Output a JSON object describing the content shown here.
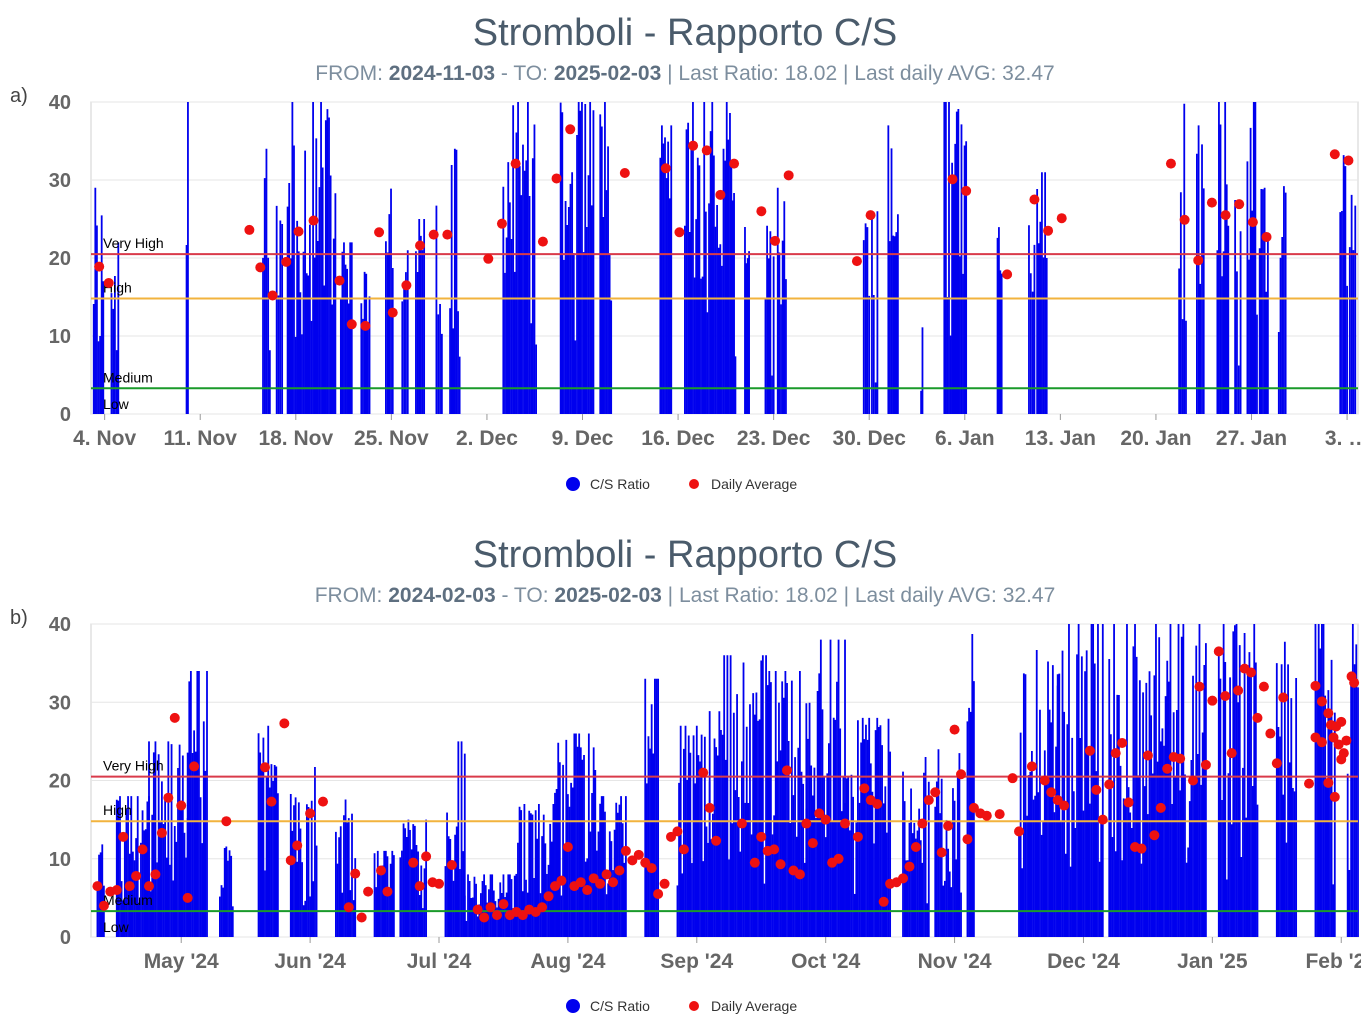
{
  "chart_data": [
    {
      "type": "bar",
      "panel_label": "a)",
      "title": "Stromboli - Rapporto C/S",
      "subtitle": {
        "from_label": "FROM:",
        "from": "2024-11-03",
        "to_label": "- TO:",
        "to": "2025-02-03",
        "last_ratio": "| Last Ratio: 18.02",
        "last_avg": "| Last daily AVG: 32.47"
      },
      "ylim": [
        0,
        40
      ],
      "xlim": [
        0,
        92.8
      ],
      "yticks": [
        "0",
        "10",
        "20",
        "30",
        "40"
      ],
      "xticks": [
        {
          "x": 1,
          "label": "4. Nov"
        },
        {
          "x": 8,
          "label": "11. Nov"
        },
        {
          "x": 15,
          "label": "18. Nov"
        },
        {
          "x": 22,
          "label": "25. Nov"
        },
        {
          "x": 29,
          "label": "2. Dec"
        },
        {
          "x": 36,
          "label": "9. Dec"
        },
        {
          "x": 43,
          "label": "16. Dec"
        },
        {
          "x": 50,
          "label": "23. Dec"
        },
        {
          "x": 57,
          "label": "30. Dec"
        },
        {
          "x": 64,
          "label": "6. Jan"
        },
        {
          "x": 71,
          "label": "13. Jan"
        },
        {
          "x": 78,
          "label": "20. Jan"
        },
        {
          "x": 85,
          "label": "27. Jan"
        },
        {
          "x": 92,
          "label": "3. …"
        }
      ],
      "thresholds": [
        {
          "name": "Very High",
          "value": 20.5,
          "color": "#d93a4a"
        },
        {
          "name": "High",
          "value": 14.8,
          "color": "#f2b33d"
        },
        {
          "name": "Medium",
          "value": 3.3,
          "color": "#1a9a2a"
        },
        {
          "name": "Low",
          "value": 0,
          "color": "#1a9a2a"
        }
      ],
      "legend": {
        "ratio_label": "C/S Ratio",
        "avg_label": "Daily Average",
        "placement": "bottom-center"
      },
      "ratio_color": "#0000ee",
      "avg_color": "#ee1111",
      "bar_clusters": [
        [
          0.2,
          0.9,
          29
        ],
        [
          1.5,
          2.0,
          22
        ],
        [
          7.0,
          7.1,
          40
        ],
        [
          12.6,
          13.1,
          34
        ],
        [
          13.6,
          14.0,
          29
        ],
        [
          14.4,
          17.9,
          40
        ],
        [
          18.3,
          19.1,
          22
        ],
        [
          19.8,
          20.4,
          19
        ],
        [
          21.6,
          22.1,
          37
        ],
        [
          22.8,
          23.2,
          21
        ],
        [
          23.8,
          24.4,
          25
        ],
        [
          25.3,
          25.7,
          27
        ],
        [
          26.3,
          27.0,
          34
        ],
        [
          30.2,
          32.6,
          40
        ],
        [
          34.4,
          36.8,
          40
        ],
        [
          37.3,
          38.1,
          40
        ],
        [
          41.7,
          42.5,
          37
        ],
        [
          43.5,
          46.8,
          40
        ],
        [
          46.9,
          47.2,
          33
        ],
        [
          47.9,
          48.2,
          27
        ],
        [
          49.4,
          50.0,
          27
        ],
        [
          50.3,
          50.9,
          29
        ],
        [
          56.6,
          57.0,
          25
        ],
        [
          57.2,
          57.6,
          26
        ],
        [
          58.4,
          59.1,
          37
        ],
        [
          60.8,
          60.9,
          15
        ],
        [
          62.5,
          64.1,
          40
        ],
        [
          66.4,
          66.7,
          28
        ],
        [
          68.7,
          69.1,
          29
        ],
        [
          69.3,
          70.0,
          31
        ],
        [
          79.7,
          80.2,
          40
        ],
        [
          81.0,
          81.5,
          37
        ],
        [
          82.5,
          83.3,
          40
        ],
        [
          83.8,
          84.2,
          29
        ],
        [
          84.7,
          85.4,
          40
        ],
        [
          85.6,
          86.2,
          29
        ],
        [
          87.0,
          87.5,
          30
        ],
        [
          91.5,
          92.0,
          36
        ],
        [
          92.2,
          92.6,
          40
        ]
      ],
      "daily_average": [
        [
          0.6,
          18.9
        ],
        [
          1.3,
          16.8
        ],
        [
          11.6,
          23.6
        ],
        [
          12.4,
          18.8
        ],
        [
          13.3,
          15.2
        ],
        [
          14.3,
          19.5
        ],
        [
          15.2,
          23.4
        ],
        [
          16.3,
          24.8
        ],
        [
          18.2,
          17.1
        ],
        [
          19.1,
          11.5
        ],
        [
          20.1,
          11.3
        ],
        [
          21.1,
          23.3
        ],
        [
          22.1,
          13.0
        ],
        [
          23.1,
          16.5
        ],
        [
          24.1,
          21.6
        ],
        [
          25.1,
          23.0
        ],
        [
          26.1,
          23.0
        ],
        [
          29.1,
          19.9
        ],
        [
          30.1,
          24.4
        ],
        [
          31.1,
          32.1
        ],
        [
          33.1,
          22.1
        ],
        [
          34.1,
          30.2
        ],
        [
          35.1,
          36.5
        ],
        [
          39.1,
          30.9
        ],
        [
          42.1,
          31.5
        ],
        [
          43.1,
          23.3
        ],
        [
          44.1,
          34.4
        ],
        [
          45.1,
          33.8
        ],
        [
          46.1,
          28.1
        ],
        [
          47.1,
          32.1
        ],
        [
          49.1,
          26.0
        ],
        [
          50.1,
          22.2
        ],
        [
          51.1,
          30.6
        ],
        [
          56.1,
          19.6
        ],
        [
          57.1,
          25.5
        ],
        [
          63.1,
          30.1
        ],
        [
          64.1,
          28.6
        ],
        [
          67.1,
          17.9
        ],
        [
          69.1,
          27.5
        ],
        [
          70.1,
          23.5
        ],
        [
          71.1,
          25.1
        ],
        [
          79.1,
          32.1
        ],
        [
          80.1,
          24.9
        ],
        [
          81.1,
          19.7
        ],
        [
          82.1,
          27.1
        ],
        [
          83.1,
          25.5
        ],
        [
          84.1,
          26.9
        ],
        [
          85.1,
          24.6
        ],
        [
          86.1,
          22.7
        ],
        [
          91.1,
          33.3
        ],
        [
          92.1,
          32.5
        ]
      ]
    },
    {
      "type": "bar",
      "panel_label": "b)",
      "title": "Stromboli - Rapporto C/S",
      "subtitle": {
        "from_label": "FROM:",
        "from": "2024-02-03",
        "to_label": "- TO:",
        "to": "2025-02-03",
        "last_ratio": "| Last Ratio: 18.02",
        "last_avg": "| Last daily AVG: 32.47"
      },
      "ylim": [
        0,
        40
      ],
      "xlim": [
        0,
        9.83
      ],
      "yticks": [
        "0",
        "10",
        "20",
        "30",
        "40"
      ],
      "xticks": [
        {
          "x": 0.7,
          "label": "May '24"
        },
        {
          "x": 1.7,
          "label": "Jun '24"
        },
        {
          "x": 2.7,
          "label": "Jul '24"
        },
        {
          "x": 3.7,
          "label": "Aug '24"
        },
        {
          "x": 4.7,
          "label": "Sep '24"
        },
        {
          "x": 5.7,
          "label": "Oct '24"
        },
        {
          "x": 6.7,
          "label": "Nov '24"
        },
        {
          "x": 7.7,
          "label": "Dec '24"
        },
        {
          "x": 8.7,
          "label": "Jan '25"
        },
        {
          "x": 9.7,
          "label": "Feb '25"
        }
      ],
      "thresholds": [
        {
          "name": "Very High",
          "value": 20.5,
          "color": "#d93a4a"
        },
        {
          "name": "High",
          "value": 14.8,
          "color": "#f2b33d"
        },
        {
          "name": "Medium",
          "value": 3.3,
          "color": "#1a9a2a"
        },
        {
          "name": "Low",
          "value": 0,
          "color": "#1a9a2a"
        }
      ],
      "legend": {
        "ratio_label": "C/S Ratio",
        "avg_label": "Daily Average",
        "placement": "bottom-center"
      },
      "ratio_color": "#0000ee",
      "avg_color": "#ee1111",
      "bar_clusters": [
        [
          0.05,
          0.1,
          13
        ],
        [
          0.2,
          0.45,
          18
        ],
        [
          0.45,
          0.75,
          25
        ],
        [
          0.75,
          0.9,
          34
        ],
        [
          1.0,
          1.1,
          12
        ],
        [
          1.3,
          1.45,
          27
        ],
        [
          1.55,
          1.75,
          22
        ],
        [
          1.9,
          2.05,
          18
        ],
        [
          2.2,
          2.35,
          11
        ],
        [
          2.4,
          2.6,
          15
        ],
        [
          2.75,
          2.9,
          25
        ],
        [
          2.9,
          3.3,
          8
        ],
        [
          3.3,
          3.6,
          17
        ],
        [
          3.6,
          3.95,
          26
        ],
        [
          3.95,
          4.15,
          18
        ],
        [
          4.3,
          4.4,
          33
        ],
        [
          4.55,
          4.8,
          27
        ],
        [
          4.8,
          5.25,
          36
        ],
        [
          5.25,
          5.55,
          34
        ],
        [
          5.55,
          5.85,
          38
        ],
        [
          5.85,
          6.2,
          28
        ],
        [
          6.3,
          6.5,
          23
        ],
        [
          6.55,
          6.75,
          24
        ],
        [
          6.8,
          6.85,
          40
        ],
        [
          7.2,
          7.5,
          38
        ],
        [
          7.5,
          7.85,
          40
        ],
        [
          7.9,
          8.3,
          40
        ],
        [
          8.3,
          8.65,
          40
        ],
        [
          8.75,
          9.05,
          40
        ],
        [
          9.2,
          9.35,
          40
        ],
        [
          9.5,
          9.65,
          40
        ],
        [
          9.75,
          9.83,
          40
        ]
      ],
      "daily_average": [
        [
          0.05,
          6.5
        ],
        [
          0.1,
          4.0
        ],
        [
          0.15,
          5.8
        ],
        [
          0.2,
          6.0
        ],
        [
          0.25,
          12.8
        ],
        [
          0.3,
          6.5
        ],
        [
          0.35,
          7.8
        ],
        [
          0.4,
          11.2
        ],
        [
          0.45,
          6.5
        ],
        [
          0.5,
          8.0
        ],
        [
          0.55,
          13.3
        ],
        [
          0.6,
          17.8
        ],
        [
          0.65,
          28.0
        ],
        [
          0.7,
          16.8
        ],
        [
          0.75,
          5.0
        ],
        [
          0.8,
          21.8
        ],
        [
          1.05,
          14.8
        ],
        [
          1.35,
          21.7
        ],
        [
          1.4,
          17.3
        ],
        [
          1.5,
          27.3
        ],
        [
          1.55,
          9.8
        ],
        [
          1.6,
          11.7
        ],
        [
          1.7,
          15.8
        ],
        [
          1.8,
          17.3
        ],
        [
          2.0,
          3.8
        ],
        [
          2.05,
          8.1
        ],
        [
          2.1,
          2.5
        ],
        [
          2.15,
          5.8
        ],
        [
          2.25,
          8.5
        ],
        [
          2.3,
          5.8
        ],
        [
          2.5,
          9.5
        ],
        [
          2.55,
          6.5
        ],
        [
          2.6,
          10.3
        ],
        [
          2.65,
          7.0
        ],
        [
          2.7,
          6.8
        ],
        [
          2.8,
          9.2
        ],
        [
          3.0,
          3.5
        ],
        [
          3.05,
          2.5
        ],
        [
          3.1,
          3.8
        ],
        [
          3.15,
          2.8
        ],
        [
          3.2,
          4.2
        ],
        [
          3.25,
          2.8
        ],
        [
          3.3,
          3.2
        ],
        [
          3.35,
          2.8
        ],
        [
          3.4,
          3.5
        ],
        [
          3.45,
          3.2
        ],
        [
          3.5,
          3.8
        ],
        [
          3.55,
          5.2
        ],
        [
          3.6,
          6.5
        ],
        [
          3.65,
          7.2
        ],
        [
          3.7,
          11.5
        ],
        [
          3.75,
          6.5
        ],
        [
          3.8,
          7.0
        ],
        [
          3.85,
          6.0
        ],
        [
          3.9,
          7.5
        ],
        [
          3.95,
          6.8
        ],
        [
          4.0,
          8.0
        ],
        [
          4.05,
          7.0
        ],
        [
          4.1,
          8.5
        ],
        [
          4.15,
          11.0
        ],
        [
          4.2,
          9.8
        ],
        [
          4.25,
          10.5
        ],
        [
          4.3,
          9.5
        ],
        [
          4.35,
          8.8
        ],
        [
          4.4,
          5.5
        ],
        [
          4.45,
          6.8
        ],
        [
          4.5,
          12.8
        ],
        [
          4.55,
          13.5
        ],
        [
          4.6,
          11.2
        ],
        [
          4.75,
          21.0
        ],
        [
          4.8,
          16.5
        ],
        [
          4.85,
          12.3
        ],
        [
          5.05,
          14.5
        ],
        [
          5.15,
          9.5
        ],
        [
          5.2,
          12.8
        ],
        [
          5.25,
          11.0
        ],
        [
          5.3,
          11.2
        ],
        [
          5.35,
          9.3
        ],
        [
          5.4,
          21.3
        ],
        [
          5.45,
          8.5
        ],
        [
          5.5,
          8.0
        ],
        [
          5.55,
          14.5
        ],
        [
          5.6,
          12.0
        ],
        [
          5.65,
          15.8
        ],
        [
          5.7,
          15.0
        ],
        [
          5.75,
          9.5
        ],
        [
          5.8,
          10.0
        ],
        [
          5.85,
          14.5
        ],
        [
          5.95,
          12.8
        ],
        [
          6.0,
          19.0
        ],
        [
          6.05,
          17.5
        ],
        [
          6.1,
          17.0
        ],
        [
          6.15,
          4.5
        ],
        [
          6.2,
          6.8
        ],
        [
          6.25,
          7.0
        ],
        [
          6.3,
          7.5
        ],
        [
          6.35,
          9.0
        ],
        [
          6.4,
          11.5
        ],
        [
          6.45,
          14.5
        ],
        [
          6.5,
          17.5
        ],
        [
          6.55,
          18.5
        ],
        [
          6.6,
          10.8
        ],
        [
          6.65,
          14.2
        ],
        [
          6.7,
          26.5
        ],
        [
          6.75,
          20.8
        ],
        [
          6.8,
          12.5
        ],
        [
          6.85,
          16.5
        ],
        [
          6.9,
          15.8
        ],
        [
          6.95,
          15.5
        ],
        [
          7.05,
          15.7
        ],
        [
          7.15,
          20.3
        ],
        [
          7.2,
          13.5
        ],
        [
          7.3,
          21.8
        ],
        [
          7.4,
          20.0
        ],
        [
          7.45,
          18.5
        ],
        [
          7.5,
          17.5
        ],
        [
          7.55,
          16.8
        ],
        [
          7.75,
          23.8
        ],
        [
          7.8,
          18.8
        ],
        [
          7.85,
          15.0
        ],
        [
          7.9,
          19.5
        ],
        [
          7.95,
          23.5
        ],
        [
          8.0,
          24.8
        ],
        [
          8.05,
          17.2
        ],
        [
          8.1,
          11.5
        ],
        [
          8.15,
          11.3
        ],
        [
          8.2,
          23.2
        ],
        [
          8.25,
          13.0
        ],
        [
          8.3,
          16.5
        ],
        [
          8.35,
          21.5
        ],
        [
          8.4,
          23.0
        ],
        [
          8.45,
          22.8
        ],
        [
          8.55,
          20.0
        ],
        [
          8.6,
          32.0
        ],
        [
          8.65,
          22.0
        ],
        [
          8.7,
          30.2
        ],
        [
          8.75,
          36.5
        ],
        [
          8.8,
          30.8
        ],
        [
          8.85,
          23.5
        ],
        [
          8.9,
          31.5
        ],
        [
          8.95,
          34.3
        ],
        [
          9.0,
          33.8
        ],
        [
          9.05,
          28.0
        ],
        [
          9.1,
          32.0
        ],
        [
          9.15,
          26.0
        ],
        [
          9.2,
          22.2
        ],
        [
          9.25,
          30.6
        ],
        [
          9.45,
          19.6
        ],
        [
          9.5,
          25.5
        ],
        [
          9.55,
          30.1
        ],
        [
          9.6,
          28.6
        ],
        [
          9.65,
          17.9
        ],
        [
          9.7,
          27.5
        ],
        [
          9.72,
          23.5
        ],
        [
          9.74,
          25.1
        ],
        [
          9.5,
          32.1
        ],
        [
          9.55,
          24.9
        ],
        [
          9.6,
          19.7
        ],
        [
          9.62,
          27.1
        ],
        [
          9.64,
          25.5
        ],
        [
          9.66,
          26.9
        ],
        [
          9.68,
          24.6
        ],
        [
          9.7,
          22.7
        ],
        [
          9.78,
          33.3
        ],
        [
          9.8,
          32.5
        ]
      ]
    }
  ]
}
